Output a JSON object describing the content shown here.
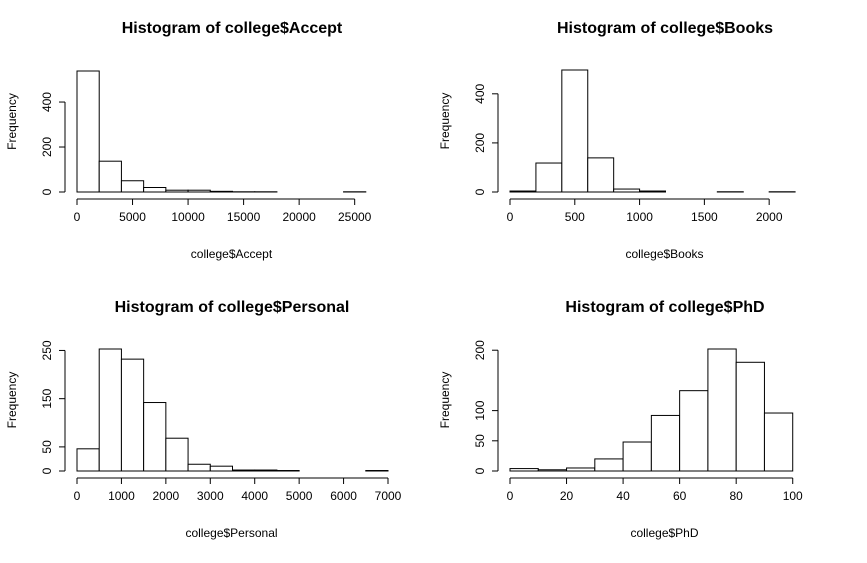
{
  "chart_data": [
    {
      "type": "bar",
      "title": "Histogram of college$Accept",
      "xlabel": "college$Accept",
      "ylabel": "Frequency",
      "bin_edges": [
        0,
        2000,
        4000,
        6000,
        8000,
        10000,
        12000,
        14000,
        16000,
        18000,
        20000,
        22000,
        24000,
        26000
      ],
      "values": [
        538,
        137,
        50,
        20,
        8,
        8,
        3,
        1,
        1,
        0,
        0,
        0,
        1
      ],
      "xlim": [
        0,
        28000
      ],
      "ylim": [
        0,
        538
      ],
      "xticks": [
        0,
        5000,
        10000,
        15000,
        20000,
        25000
      ],
      "xtick_labels": [
        "0",
        "5000",
        "10000",
        "15000",
        "20000",
        "25000"
      ],
      "yticks": [
        0,
        200,
        400
      ],
      "ytick_labels": [
        "0",
        "200",
        "400"
      ]
    },
    {
      "type": "bar",
      "title": "Histogram of college$Books",
      "xlabel": "college$Books",
      "ylabel": "Frequency",
      "bin_edges": [
        0,
        200,
        400,
        600,
        800,
        1000,
        1200,
        1400,
        1600,
        1800,
        2000,
        2200
      ],
      "values": [
        4,
        118,
        497,
        139,
        12,
        4,
        0,
        0,
        1,
        0,
        1
      ],
      "xlim": [
        0,
        2400
      ],
      "ylim": [
        0,
        497
      ],
      "xticks": [
        0,
        500,
        1000,
        1500,
        2000
      ],
      "xtick_labels": [
        "0",
        "500",
        "1000",
        "1500",
        "2000"
      ],
      "yticks": [
        0,
        200,
        400
      ],
      "ytick_labels": [
        "0",
        "200",
        "400"
      ]
    },
    {
      "type": "bar",
      "title": "Histogram of college$Personal",
      "xlabel": "college$Personal",
      "ylabel": "Frequency",
      "bin_edges": [
        0,
        500,
        1000,
        1500,
        2000,
        2500,
        3000,
        3500,
        4000,
        4500,
        5000,
        5500,
        6000,
        6500,
        7000
      ],
      "values": [
        46,
        253,
        232,
        142,
        68,
        14,
        10,
        2,
        2,
        1,
        0,
        0,
        0,
        1
      ],
      "xlim": [
        0,
        7000
      ],
      "ylim": [
        0,
        253
      ],
      "xticks": [
        0,
        1000,
        2000,
        3000,
        4000,
        5000,
        6000,
        7000
      ],
      "xtick_labels": [
        "0",
        "1000",
        "2000",
        "3000",
        "4000",
        "5000",
        "6000",
        "7000"
      ],
      "yticks": [
        0,
        50,
        150,
        250
      ],
      "ytick_labels": [
        "0",
        "50",
        "150",
        "250"
      ]
    },
    {
      "type": "bar",
      "title": "Histogram of college$PhD",
      "xlabel": "college$PhD",
      "ylabel": "Frequency",
      "bin_edges": [
        0,
        10,
        20,
        30,
        40,
        50,
        60,
        70,
        80,
        90,
        100
      ],
      "values": [
        4,
        2,
        5,
        20,
        48,
        92,
        133,
        202,
        180,
        96
      ],
      "xlim": [
        0,
        110
      ],
      "ylim": [
        0,
        202
      ],
      "xticks": [
        0,
        20,
        40,
        60,
        80,
        100
      ],
      "xtick_labels": [
        "0",
        "20",
        "40",
        "60",
        "80",
        "100"
      ],
      "yticks": [
        0,
        50,
        100,
        200
      ],
      "ytick_labels": [
        "0",
        "50",
        "100",
        "200"
      ]
    }
  ]
}
